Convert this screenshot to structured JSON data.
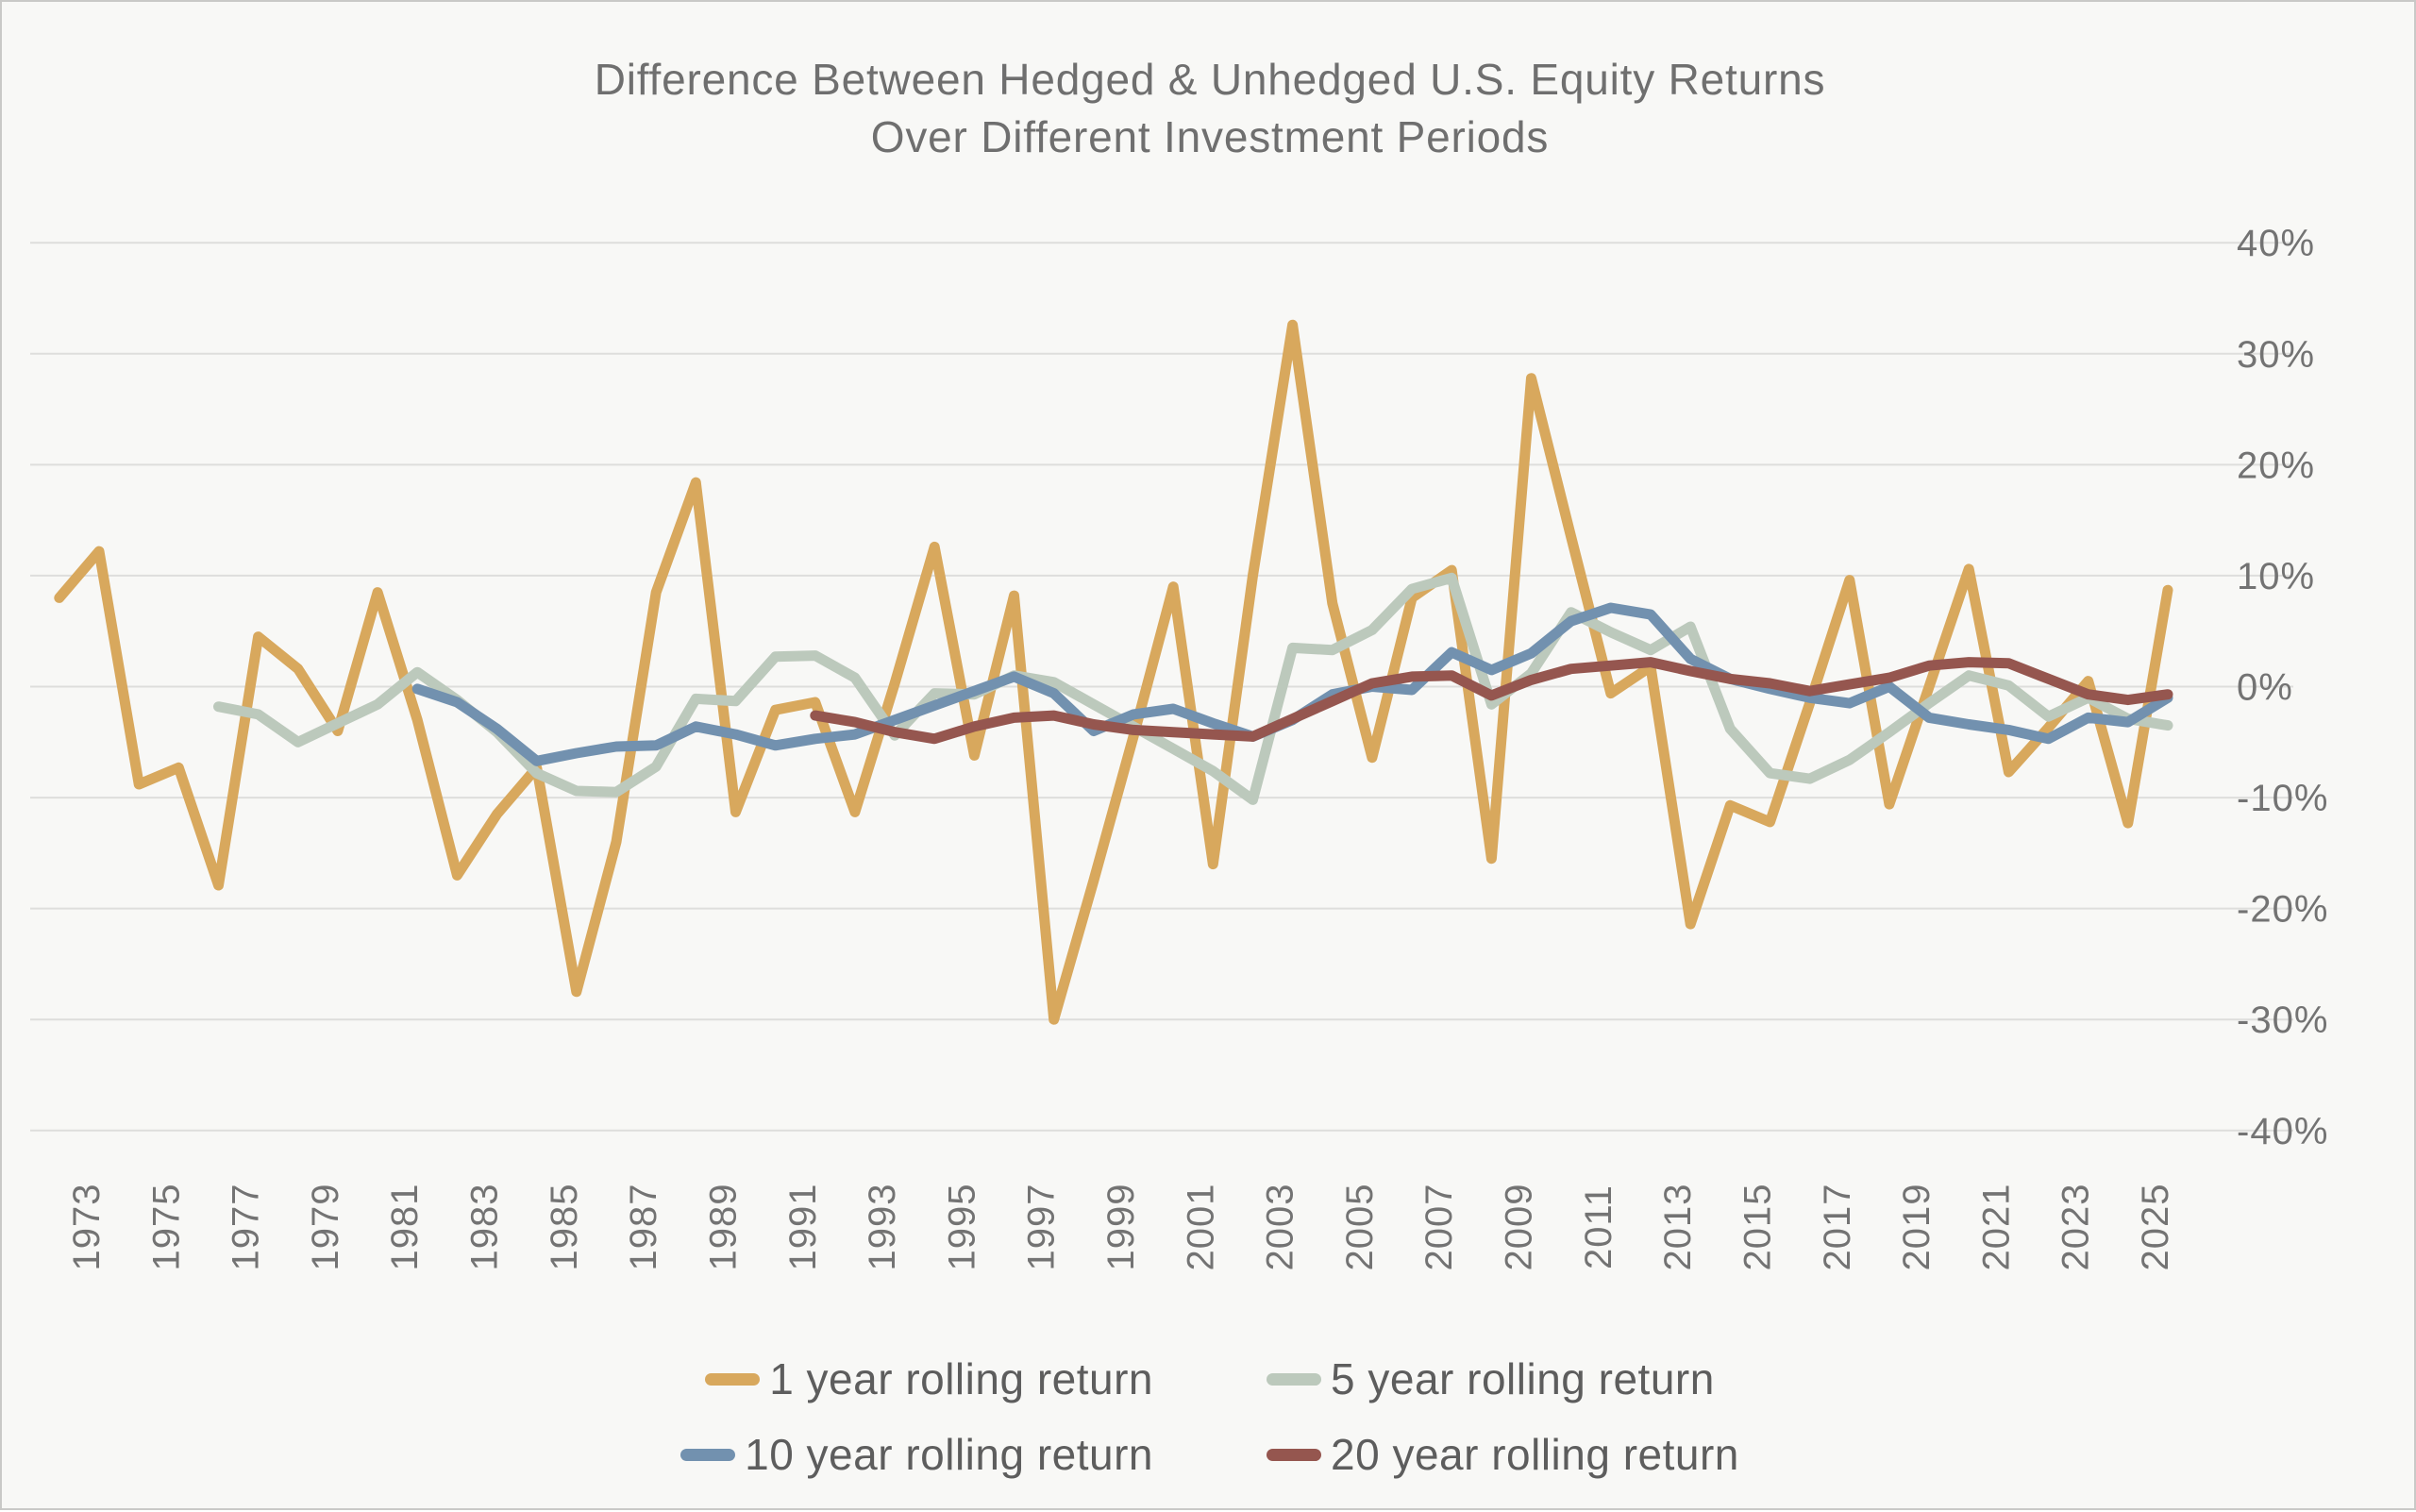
{
  "chart_data": {
    "type": "line",
    "title": "Difference Between Hedged & Unhedged U.S. Equity Returns Over Different Investment Periods",
    "title_lines": [
      "Difference Between Hedged & Unhedged U.S. Equity Returns",
      "Over Different Investment Periods"
    ],
    "grid": "horizontal",
    "legend_position": "bottom",
    "x_axis": {
      "range": [
        1972,
        2025
      ],
      "tick_years": [
        1973,
        1975,
        1977,
        1979,
        1981,
        1983,
        1985,
        1987,
        1989,
        1991,
        1993,
        1995,
        1997,
        1999,
        2001,
        2003,
        2005,
        2007,
        2009,
        2011,
        2013,
        2015,
        2017,
        2019,
        2021,
        2023,
        2025
      ]
    },
    "y_axis": {
      "unit": "%",
      "range": [
        -40,
        40
      ],
      "tick_values": [
        40,
        30,
        20,
        10,
        0,
        -10,
        -20,
        -30,
        -40
      ],
      "tick_labels": [
        "40%",
        "30%",
        "20%",
        "10%",
        "0%",
        "-10%",
        "-20%",
        "-30%",
        "-40%"
      ]
    },
    "series": [
      {
        "name": "1 year rolling return",
        "color": "#D8A85D",
        "start_year": 1972,
        "values": [
          8.0,
          12.2,
          -8.8,
          -7.3,
          -17.9,
          4.5,
          1.6,
          -4.0,
          8.5,
          -3.0,
          -17.0,
          -11.5,
          -7.3,
          -27.5,
          -14.0,
          8.5,
          18.4,
          -11.3,
          -2.1,
          -1.4,
          -11.3,
          0.3,
          12.6,
          -6.2,
          8.2,
          -30.0,
          -17.5,
          -4.5,
          9.0,
          -16.0,
          10.0,
          32.6,
          7.5,
          -6.4,
          8.0,
          10.5,
          -15.5,
          27.8,
          13.5,
          -0.6,
          1.8,
          -21.4,
          -10.7,
          -12.2,
          -1.5,
          9.6,
          -10.6,
          0.0,
          10.6,
          -7.7,
          -3.7,
          0.5,
          -12.3,
          8.7
        ]
      },
      {
        "name": "5 year rolling return",
        "color": "#BCC9BC",
        "start_year": 1976,
        "values": [
          -1.8,
          -2.5,
          -5.0,
          -3.3,
          -1.6,
          1.3,
          -1.2,
          -4.1,
          -7.8,
          -9.4,
          -9.5,
          -7.2,
          -1.1,
          -1.3,
          2.7,
          2.8,
          0.8,
          -4.4,
          -0.6,
          -0.7,
          1.0,
          0.4,
          -1.6,
          -3.6,
          -5.6,
          -7.6,
          -10.2,
          3.5,
          3.3,
          5.1,
          8.8,
          9.8,
          -1.6,
          1.2,
          6.7,
          4.9,
          3.3,
          5.4,
          -3.8,
          -7.8,
          -8.3,
          -6.6,
          -4.1,
          -1.5,
          1.0,
          0.1,
          -2.7,
          -1.0,
          -2.9,
          -3.5
        ]
      },
      {
        "name": "10 year rolling return",
        "color": "#7291AF",
        "start_year": 1981,
        "values": [
          -0.2,
          -1.4,
          -3.8,
          -6.7,
          -6.0,
          -5.4,
          -5.3,
          -3.6,
          -4.3,
          -5.3,
          -4.7,
          -4.3,
          -3.0,
          -1.7,
          -0.4,
          0.9,
          -0.6,
          -4.0,
          -2.5,
          -2.0,
          -3.3,
          -4.5,
          -3.0,
          -0.7,
          0.0,
          -0.3,
          3.1,
          1.5,
          3.0,
          5.9,
          7.1,
          6.5,
          2.5,
          0.7,
          -0.2,
          -1.0,
          -1.5,
          0.0,
          -2.8,
          -3.4,
          -3.9,
          -4.7,
          -2.8,
          -3.2,
          -1.0
        ]
      },
      {
        "name": "20 year rolling return",
        "color": "#95564F",
        "start_year": 1991,
        "values": [
          -2.6,
          -3.2,
          -4.1,
          -4.7,
          -3.6,
          -2.8,
          -2.6,
          -3.4,
          -3.9,
          -4.1,
          -4.3,
          -4.5,
          -2.9,
          -1.3,
          0.3,
          0.9,
          1.0,
          -0.8,
          0.6,
          1.6,
          1.9,
          2.2,
          1.4,
          0.7,
          0.3,
          -0.4,
          0.2,
          0.8,
          1.9,
          2.2,
          2.1,
          0.7,
          -0.7,
          -1.2,
          -0.7
        ]
      }
    ]
  },
  "colors": {
    "background": "#F8F8F6",
    "gridline": "#DEDEDC",
    "title_text": "#6F6F6F",
    "tick_text": "#737373",
    "legend_text": "#5D5D5D"
  }
}
